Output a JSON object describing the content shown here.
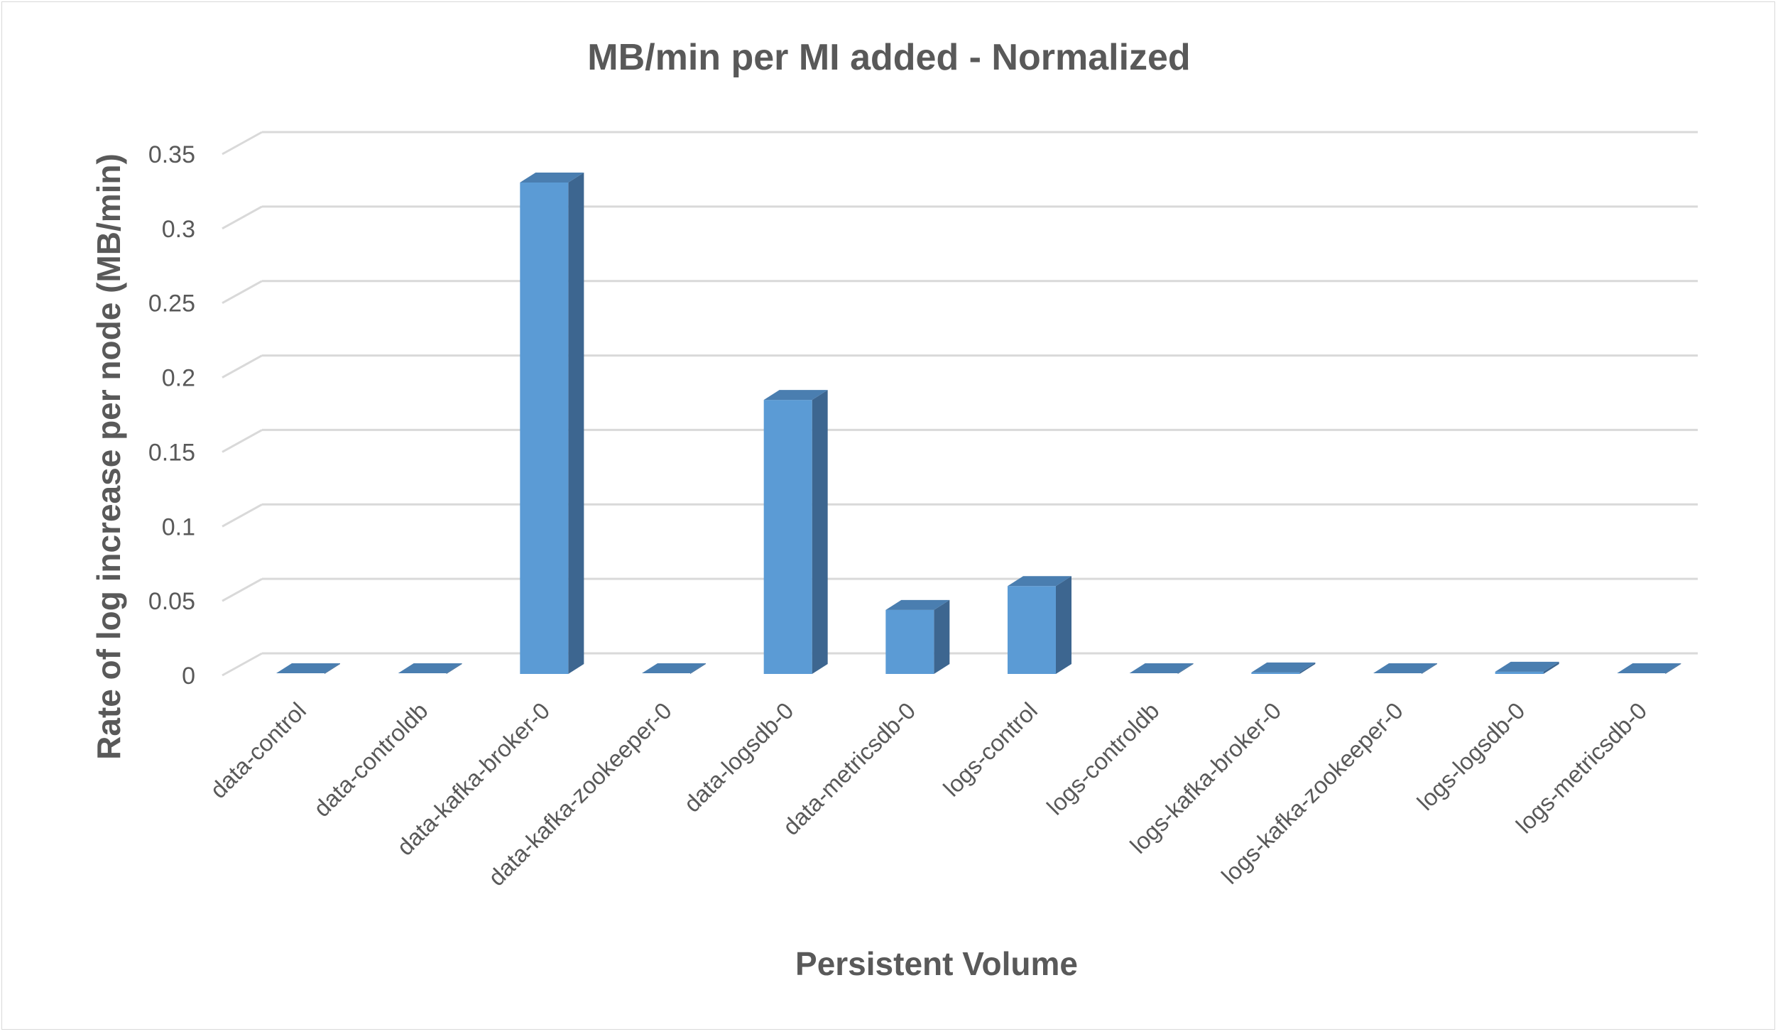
{
  "chart_data": {
    "type": "bar",
    "title": "MB/min per MI added - Normalized",
    "xlabel": "Persistent Volume",
    "ylabel": "Rate of log increase per node (MB/min)",
    "categories": [
      "data-control",
      "data-controldb",
      "data-kafka-broker-0",
      "data-kafka-zookeeper-0",
      "data-logsdb-0",
      "data-metricsdb-0",
      "logs-control",
      "logs-controldb",
      "logs-kafka-broker-0",
      "logs-kafka-zookeeper-0",
      "logs-logsdb-0",
      "logs-metricsdb-0"
    ],
    "values": [
      0,
      0,
      0.33,
      0,
      0.184,
      0.043,
      0.059,
      0,
      0.001,
      0,
      0.0015,
      0
    ],
    "ylim": [
      0,
      0.35
    ],
    "yticks": [
      "0",
      "0.05",
      "0.1",
      "0.15",
      "0.2",
      "0.25",
      "0.3",
      "0.35"
    ],
    "grid": true,
    "legend": "none",
    "style": "3d-column",
    "colors": {
      "bar_front": "#5b9bd5",
      "bar_side": "#3d6690",
      "bar_top": "#4a7eb0",
      "gridline": "#d9d9d9",
      "text": "#595959"
    }
  }
}
